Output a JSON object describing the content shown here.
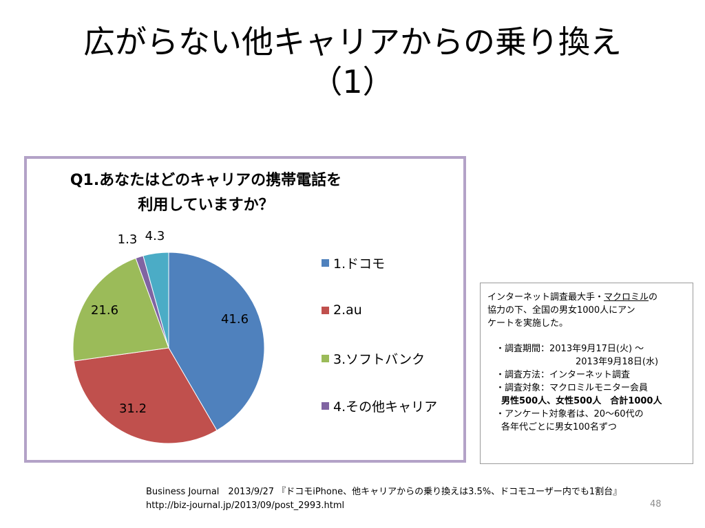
{
  "slide": {
    "title_line1": "広がらない他キャリアからの乗り換え",
    "title_line2": "（1）",
    "page_number": "48"
  },
  "chart_data": {
    "type": "pie",
    "title_line1": "Q1.あなたはどのキャリアの携帯電話を",
    "title_line2": "利用していますか？",
    "categories": [
      "1.ドコモ",
      "2.au",
      "3.ソフトバンク",
      "4.その他キャリア",
      ""
    ],
    "values": [
      41.6,
      31.2,
      21.6,
      1.3,
      4.3
    ],
    "value_labels": [
      "41.6",
      "31.2",
      "21.6",
      "1.3",
      "4.3"
    ],
    "colors": [
      "#4f81bd",
      "#c0504d",
      "#9bbb59",
      "#8064a2",
      "#4bacc6"
    ],
    "legend_position": "right",
    "legend": [
      {
        "label": "1.ドコモ",
        "color": "#4f81bd"
      },
      {
        "label": "2.au",
        "color": "#c0504d"
      },
      {
        "label": "3.ソフトバンク",
        "color": "#9bbb59"
      },
      {
        "label": "4.その他キャリア",
        "color": "#8064a2"
      }
    ]
  },
  "info": {
    "intro_line1_a": "インターネット調査最大手・",
    "intro_line1_b": "マクロミル",
    "intro_line1_c": "の",
    "intro_line2": "協力の下、全国の男女1000人にアン",
    "intro_line3": "ケートを実施した。",
    "period_line1": "・調査期間：2013年9月17日(火) ～",
    "period_line2": "2013年9月18日(水)",
    "method": "・調査方法：インターネット調査",
    "target_line1": "・調査対象：マクロミルモニター会員",
    "target_line2": "男性500人、女性500人　合計1000人",
    "respondents_line1": "・アンケート対象者は、20～60代の",
    "respondents_line2": "各年代ごとに男女100名ずつ"
  },
  "source": {
    "line1": "Business Journal　2013/9/27 『ドコモiPhone、他キャリアからの乗り換えは3.5%、ドコモユーザー内でも1割台』",
    "line2": "http://biz-journal.jp/2013/09/post_2993.html"
  }
}
